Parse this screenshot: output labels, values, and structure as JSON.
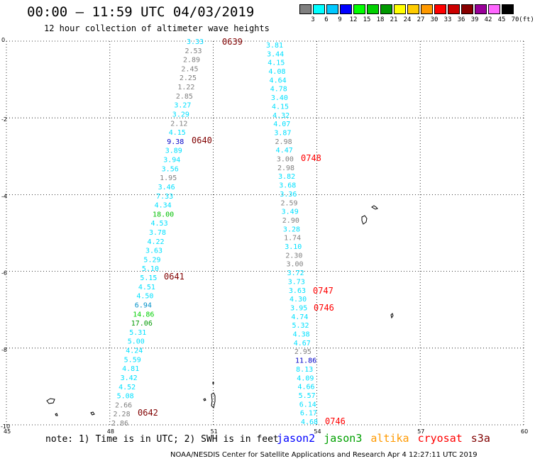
{
  "header": {
    "title": "00:00 – 11:59 UTC 04/03/2019",
    "subtitle": "12 hour collection of altimeter wave heights"
  },
  "colorbar": {
    "unit": "(ft)",
    "swatches": [
      {
        "color": "#808080",
        "label": "3"
      },
      {
        "color": "#00ffff",
        "label": "6"
      },
      {
        "color": "#00c8ff",
        "label": "9"
      },
      {
        "color": "#0000ff",
        "label": "12"
      },
      {
        "color": "#00ff00",
        "label": "15"
      },
      {
        "color": "#00d000",
        "label": "18"
      },
      {
        "color": "#009900",
        "label": "21"
      },
      {
        "color": "#ffff00",
        "label": "24"
      },
      {
        "color": "#ffcc00",
        "label": "27"
      },
      {
        "color": "#ff9900",
        "label": "30"
      },
      {
        "color": "#ff0000",
        "label": "33"
      },
      {
        "color": "#cc0000",
        "label": "36"
      },
      {
        "color": "#880000",
        "label": "39"
      },
      {
        "color": "#990099",
        "label": "42"
      },
      {
        "color": "#ff66ff",
        "label": "45"
      },
      {
        "color": "#000000",
        "label": "70"
      }
    ]
  },
  "map": {
    "x_ticks": [
      "45",
      "48",
      "51",
      "54",
      "57",
      "60"
    ],
    "y_ticks": [
      "0",
      "-2",
      "-4",
      "-6",
      "-8",
      "-10"
    ],
    "track_left": {
      "values": [
        "3.33",
        "2.53",
        "2.89",
        "2.45",
        "2.25",
        "1.22",
        "2.85",
        "3.27",
        "3.29",
        "2.12",
        "4.15",
        "9.38",
        "3.89",
        "3.94",
        "3.56",
        "1.95",
        "3.46",
        "7.33",
        "4.34",
        "18.00",
        "4.53",
        "3.78",
        "4.22",
        "3.63",
        "5.29",
        "5.10",
        "5.15",
        "4.51",
        "4.50",
        "6.94",
        "14.86",
        "17.06",
        "5.31",
        "5.00",
        "4.24",
        "5.59",
        "4.81",
        "3.42",
        "4.52",
        "5.08",
        "2.66",
        "2.28",
        "2.86"
      ],
      "colors": [
        "#00d8ff",
        "#808080",
        "#808080",
        "#808080",
        "#808080",
        "#808080",
        "#808080",
        "#00e0ff",
        "#00e0ff",
        "#808080",
        "#00e0ff",
        "#0000c8",
        "#00e0ff",
        "#00e0ff",
        "#00e0ff",
        "#808080",
        "#00e0ff",
        "#00e0ff",
        "#00e0ff",
        "#00c000",
        "#00e0ff",
        "#00e0ff",
        "#00e0ff",
        "#00e0ff",
        "#00e0ff",
        "#00e0ff",
        "#00e0ff",
        "#00e0ff",
        "#00e0ff",
        "#0090c8",
        "#00d000",
        "#009900",
        "#00e0ff",
        "#00e0ff",
        "#00e0ff",
        "#00e0ff",
        "#00e0ff",
        "#00e0ff",
        "#00e0ff",
        "#00e0ff",
        "#808080",
        "#808080",
        "#808080"
      ]
    },
    "track_right": {
      "values": [
        "3.81",
        "3.44",
        "4.15",
        "4.08",
        "4.64",
        "4.78",
        "3.40",
        "4.15",
        "4.32",
        "4.07",
        "3.87",
        "2.98",
        "4.47",
        "3.00",
        "2.98",
        "3.82",
        "3.68",
        "3.36",
        "2.59",
        "3.49",
        "2.90",
        "3.28",
        "1.74",
        "3.10",
        "2.30",
        "3.00",
        "3.72",
        "3.73",
        "3.63",
        "4.30",
        "3.95",
        "4.74",
        "5.32",
        "4.38",
        "4.67",
        "2.95",
        "11.86",
        "8.13",
        "4.09",
        "4.66",
        "5.57",
        "6.14",
        "6.17",
        "4.68"
      ],
      "colors": [
        "#00e0ff",
        "#00e0ff",
        "#00e0ff",
        "#00e0ff",
        "#00e0ff",
        "#00e0ff",
        "#00e0ff",
        "#00e0ff",
        "#00e0ff",
        "#00e0ff",
        "#00e0ff",
        "#808080",
        "#00e0ff",
        "#808080",
        "#808080",
        "#00e0ff",
        "#00e0ff",
        "#00e0ff",
        "#808080",
        "#00e0ff",
        "#808080",
        "#00e0ff",
        "#808080",
        "#00e0ff",
        "#808080",
        "#808080",
        "#00e0ff",
        "#00e0ff",
        "#00e0ff",
        "#00e0ff",
        "#00e0ff",
        "#00e0ff",
        "#00e0ff",
        "#00e0ff",
        "#00e0ff",
        "#808080",
        "#0000c8",
        "#00e0ff",
        "#00e0ff",
        "#00e0ff",
        "#00e0ff",
        "#00e0ff",
        "#00e0ff",
        "#00e0ff"
      ]
    },
    "time_stamps": [
      {
        "text": "0639",
        "color": "#800000"
      },
      {
        "text": "0640",
        "color": "#800000"
      },
      {
        "text": "0641",
        "color": "#800000"
      },
      {
        "text": "0642",
        "color": "#800000"
      },
      {
        "text": "0748",
        "color": "#ff0000"
      },
      {
        "text": "0747",
        "color": "#ff0000"
      },
      {
        "text": "0746",
        "color": "#ff0000"
      },
      {
        "text": "0746",
        "color": "#ff0000"
      }
    ]
  },
  "note": "note: 1) Time is in UTC; 2) SWH is in feet",
  "satellites": [
    {
      "name": "jason2",
      "color": "#0000ff"
    },
    {
      "name": "jason3",
      "color": "#00a000"
    },
    {
      "name": "altika",
      "color": "#ff9900"
    },
    {
      "name": "cryosat",
      "color": "#ff0000"
    },
    {
      "name": "s3a",
      "color": "#800000"
    }
  ],
  "footer": "NOAA/NESDIS Center for Satellite Applications and Research   Apr  4 12:27:11 UTC 2019"
}
